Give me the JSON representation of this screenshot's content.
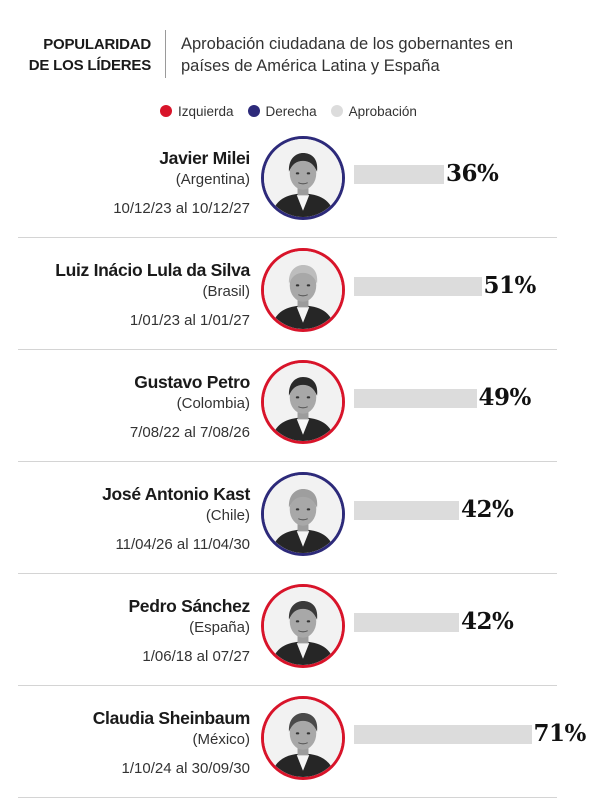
{
  "header": {
    "title_line1": "POPULARIDAD",
    "title_line2": "DE LOS LÍDERES",
    "subtitle_line1": "Aprobación ciudadana de los gobernantes en",
    "subtitle_line2": "países de América Latina y España"
  },
  "legend": [
    {
      "label": "Izquierda",
      "color": "#d8142a"
    },
    {
      "label": "Derecha",
      "color": "#2d2a7a"
    },
    {
      "label": "Aprobación",
      "color": "#dcdcdc"
    }
  ],
  "colors": {
    "izquierda": "#d8142a",
    "derecha": "#2d2a7a",
    "bar": "#dcdcdc"
  },
  "chart_data": {
    "type": "bar",
    "orientation": "horizontal",
    "title": "POPULARIDAD DE LOS LÍDERES",
    "subtitle": "Aprobación ciudadana de los gobernantes en países de América Latina y España",
    "categories": [
      "Javier Milei",
      "Luiz Inácio Lula da Silva",
      "Gustavo Petro",
      "José Antonio Kast",
      "Pedro Sánchez",
      "Claudia Sheinbaum"
    ],
    "values": [
      36,
      51,
      49,
      42,
      42,
      71
    ],
    "unit": "%",
    "xlim": [
      0,
      100
    ],
    "legend": [
      "Izquierda",
      "Derecha",
      "Aprobación"
    ],
    "legend_position": "top",
    "grid": false,
    "rows": [
      {
        "name": "Javier Milei",
        "country": "(Argentina)",
        "dates": "10/12/23 al 10/12/27",
        "value": 36,
        "label": "36%",
        "side": "derecha",
        "portrait": "portrait-milei"
      },
      {
        "name": "Luiz Inácio Lula da Silva",
        "country": "(Brasil)",
        "dates": "1/01/23 al 1/01/27",
        "value": 51,
        "label": "51%",
        "side": "izquierda",
        "portrait": "portrait-lula"
      },
      {
        "name": "Gustavo Petro",
        "country": "(Colombia)",
        "dates": "7/08/22 al 7/08/26",
        "value": 49,
        "label": "49%",
        "side": "izquierda",
        "portrait": "portrait-petro"
      },
      {
        "name": "José Antonio Kast",
        "country": "(Chile)",
        "dates": "11/04/26 al 11/04/30",
        "value": 42,
        "label": "42%",
        "side": "derecha",
        "portrait": "portrait-kast"
      },
      {
        "name": "Pedro Sánchez",
        "country": "(España)",
        "dates": "1/06/18 al 07/27",
        "value": 42,
        "label": "42%",
        "side": "izquierda",
        "portrait": "portrait-sanchez"
      },
      {
        "name": "Claudia Sheinbaum",
        "country": "(México)",
        "dates": "1/10/24 al 30/09/30",
        "value": 71,
        "label": "71%",
        "side": "izquierda",
        "portrait": "portrait-sheinbaum"
      }
    ]
  }
}
